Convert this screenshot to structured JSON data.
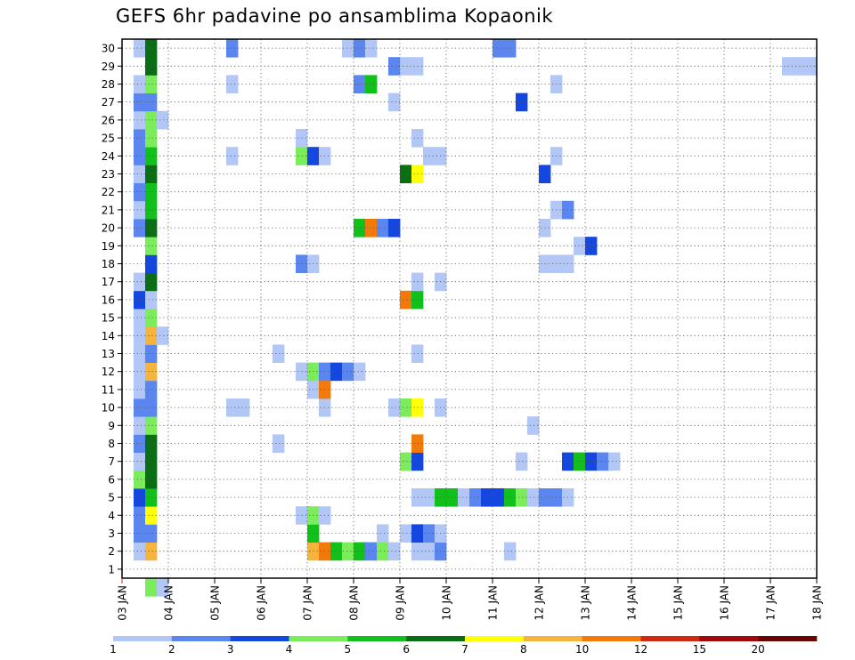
{
  "title": "GEFS 6hr padavine po ansamblima Kopaonik",
  "colors": {
    "c1": "#b3c7f7",
    "c2": "#5b86f0",
    "c3": "#1446e0",
    "c4": "#7ced5a",
    "c5": "#11c01a",
    "c6": "#0a6e14",
    "c7": "#ffff0a",
    "c8": "#f5b53c",
    "c9": "#f27a0a",
    "c10": "#d2280f",
    "c11": "#a00a0a",
    "c12": "#6a0505"
  },
  "chart_data": {
    "type": "heatmap",
    "title": "GEFS 6hr padavine po ansamblima Kopaonik",
    "x_tick_labels": [
      "03 JAN",
      "04 JAN",
      "05 JAN",
      "06 JAN",
      "07 JAN",
      "08 JAN",
      "09 JAN",
      "10 JAN",
      "11 JAN",
      "12 JAN",
      "13 JAN",
      "14 JAN",
      "15 JAN",
      "16 JAN",
      "17 JAN",
      "18 JAN"
    ],
    "y_tick_labels": [
      "1",
      "2",
      "3",
      "4",
      "5",
      "6",
      "7",
      "8",
      "9",
      "10",
      "11",
      "12",
      "13",
      "14",
      "15",
      "16",
      "17",
      "18",
      "19",
      "20",
      "21",
      "22",
      "23",
      "24",
      "25",
      "26",
      "27",
      "28",
      "29",
      "30"
    ],
    "xlim": [
      0,
      60
    ],
    "ylim": [
      0,
      30
    ],
    "grid": true,
    "colorbar_labels": [
      "1",
      "2",
      "3",
      "4",
      "5",
      "6",
      "7",
      "8",
      "10",
      "12",
      "15",
      "20"
    ],
    "colorbar_colors": [
      "c1",
      "c2",
      "c3",
      "c4",
      "c5",
      "c6",
      "c7",
      "c8",
      "c9",
      "c10",
      "c11",
      "c12"
    ],
    "cells": [
      [
        1,
        1,
        "c1"
      ],
      [
        2,
        1,
        "c8"
      ],
      [
        16,
        1,
        "c8"
      ],
      [
        17,
        1,
        "c9"
      ],
      [
        18,
        1,
        "c5"
      ],
      [
        19,
        1,
        "c4"
      ],
      [
        20,
        1,
        "c5"
      ],
      [
        21,
        1,
        "c2"
      ],
      [
        22,
        1,
        "c4"
      ],
      [
        23,
        1,
        "c1"
      ],
      [
        25,
        1,
        "c1"
      ],
      [
        26,
        1,
        "c1"
      ],
      [
        27,
        1,
        "c2"
      ],
      [
        33,
        1,
        "c1"
      ],
      [
        1,
        2,
        "c2"
      ],
      [
        2,
        2,
        "c2"
      ],
      [
        16,
        2,
        "c5"
      ],
      [
        22,
        2,
        "c1"
      ],
      [
        24,
        2,
        "c1"
      ],
      [
        25,
        2,
        "c3"
      ],
      [
        26,
        2,
        "c2"
      ],
      [
        27,
        2,
        "c1"
      ],
      [
        1,
        3,
        "c2"
      ],
      [
        2,
        3,
        "c7"
      ],
      [
        15,
        3,
        "c1"
      ],
      [
        16,
        3,
        "c4"
      ],
      [
        17,
        3,
        "c1"
      ],
      [
        1,
        4,
        "c3"
      ],
      [
        2,
        4,
        "c5"
      ],
      [
        25,
        4,
        "c1"
      ],
      [
        26,
        4,
        "c1"
      ],
      [
        27,
        4,
        "c5"
      ],
      [
        28,
        4,
        "c5"
      ],
      [
        29,
        4,
        "c1"
      ],
      [
        30,
        4,
        "c2"
      ],
      [
        31,
        4,
        "c3"
      ],
      [
        32,
        4,
        "c3"
      ],
      [
        33,
        4,
        "c5"
      ],
      [
        34,
        4,
        "c4"
      ],
      [
        35,
        4,
        "c1"
      ],
      [
        36,
        4,
        "c2"
      ],
      [
        37,
        4,
        "c2"
      ],
      [
        38,
        4,
        "c1"
      ],
      [
        1,
        5,
        "c4"
      ],
      [
        2,
        5,
        "c6"
      ],
      [
        1,
        6,
        "c1"
      ],
      [
        2,
        6,
        "c6"
      ],
      [
        24,
        6,
        "c4"
      ],
      [
        25,
        6,
        "c3"
      ],
      [
        34,
        6,
        "c1"
      ],
      [
        38,
        6,
        "c3"
      ],
      [
        39,
        6,
        "c5"
      ],
      [
        40,
        6,
        "c3"
      ],
      [
        41,
        6,
        "c2"
      ],
      [
        42,
        6,
        "c1"
      ],
      [
        1,
        7,
        "c2"
      ],
      [
        2,
        7,
        "c6"
      ],
      [
        13,
        7,
        "c1"
      ],
      [
        25,
        7,
        "c9"
      ],
      [
        1,
        8,
        "c1"
      ],
      [
        2,
        8,
        "c4"
      ],
      [
        35,
        8,
        "c1"
      ],
      [
        1,
        9,
        "c2"
      ],
      [
        2,
        9,
        "c2"
      ],
      [
        9,
        9,
        "c1"
      ],
      [
        10,
        9,
        "c1"
      ],
      [
        17,
        9,
        "c1"
      ],
      [
        23,
        9,
        "c1"
      ],
      [
        24,
        9,
        "c4"
      ],
      [
        25,
        9,
        "c7"
      ],
      [
        27,
        9,
        "c1"
      ],
      [
        1,
        10,
        "c1"
      ],
      [
        2,
        10,
        "c2"
      ],
      [
        16,
        10,
        "c1"
      ],
      [
        17,
        10,
        "c9"
      ],
      [
        1,
        11,
        "c1"
      ],
      [
        2,
        11,
        "c8"
      ],
      [
        15,
        11,
        "c1"
      ],
      [
        16,
        11,
        "c4"
      ],
      [
        17,
        11,
        "c2"
      ],
      [
        18,
        11,
        "c3"
      ],
      [
        19,
        11,
        "c2"
      ],
      [
        20,
        11,
        "c1"
      ],
      [
        1,
        12,
        "c1"
      ],
      [
        2,
        12,
        "c2"
      ],
      [
        13,
        12,
        "c1"
      ],
      [
        25,
        12,
        "c1"
      ],
      [
        1,
        13,
        "c1"
      ],
      [
        2,
        13,
        "c8"
      ],
      [
        3,
        13,
        "c1"
      ],
      [
        1,
        14,
        "c1"
      ],
      [
        2,
        14,
        "c4"
      ],
      [
        1,
        15,
        "c3"
      ],
      [
        2,
        15,
        "c1"
      ],
      [
        24,
        15,
        "c9"
      ],
      [
        25,
        15,
        "c5"
      ],
      [
        1,
        16,
        "c1"
      ],
      [
        2,
        16,
        "c6"
      ],
      [
        25,
        16,
        "c1"
      ],
      [
        27,
        16,
        "c1"
      ],
      [
        2,
        17,
        "c3"
      ],
      [
        15,
        17,
        "c2"
      ],
      [
        16,
        17,
        "c1"
      ],
      [
        36,
        17,
        "c1"
      ],
      [
        37,
        17,
        "c1"
      ],
      [
        38,
        17,
        "c1"
      ],
      [
        2,
        18,
        "c4"
      ],
      [
        39,
        18,
        "c1"
      ],
      [
        40,
        18,
        "c3"
      ],
      [
        1,
        19,
        "c2"
      ],
      [
        2,
        19,
        "c6"
      ],
      [
        20,
        19,
        "c5"
      ],
      [
        21,
        19,
        "c9"
      ],
      [
        22,
        19,
        "c2"
      ],
      [
        23,
        19,
        "c3"
      ],
      [
        36,
        19,
        "c1"
      ],
      [
        1,
        20,
        "c1"
      ],
      [
        2,
        20,
        "c5"
      ],
      [
        37,
        20,
        "c1"
      ],
      [
        38,
        20,
        "c2"
      ],
      [
        1,
        21,
        "c2"
      ],
      [
        2,
        21,
        "c5"
      ],
      [
        1,
        22,
        "c1"
      ],
      [
        2,
        22,
        "c6"
      ],
      [
        24,
        22,
        "c6"
      ],
      [
        25,
        22,
        "c7"
      ],
      [
        36,
        22,
        "c3"
      ],
      [
        1,
        23,
        "c2"
      ],
      [
        2,
        23,
        "c5"
      ],
      [
        9,
        23,
        "c1"
      ],
      [
        15,
        23,
        "c4"
      ],
      [
        16,
        23,
        "c3"
      ],
      [
        17,
        23,
        "c1"
      ],
      [
        26,
        23,
        "c1"
      ],
      [
        27,
        23,
        "c1"
      ],
      [
        37,
        23,
        "c1"
      ],
      [
        1,
        24,
        "c2"
      ],
      [
        2,
        24,
        "c4"
      ],
      [
        15,
        24,
        "c1"
      ],
      [
        25,
        24,
        "c1"
      ],
      [
        1,
        25,
        "c1"
      ],
      [
        2,
        25,
        "c4"
      ],
      [
        3,
        25,
        "c1"
      ],
      [
        1,
        26,
        "c2"
      ],
      [
        2,
        26,
        "c2"
      ],
      [
        23,
        26,
        "c1"
      ],
      [
        34,
        26,
        "c3"
      ],
      [
        1,
        27,
        "c1"
      ],
      [
        2,
        27,
        "c4"
      ],
      [
        9,
        27,
        "c1"
      ],
      [
        20,
        27,
        "c2"
      ],
      [
        21,
        27,
        "c5"
      ],
      [
        37,
        27,
        "c1"
      ],
      [
        2,
        28,
        "c6"
      ],
      [
        23,
        28,
        "c2"
      ],
      [
        24,
        28,
        "c1"
      ],
      [
        25,
        28,
        "c1"
      ],
      [
        57,
        28,
        "c1"
      ],
      [
        58,
        28,
        "c1"
      ],
      [
        59,
        28,
        "c1"
      ],
      [
        1,
        29,
        "c1"
      ],
      [
        2,
        29,
        "c6"
      ],
      [
        9,
        29,
        "c2"
      ],
      [
        19,
        29,
        "c1"
      ],
      [
        20,
        29,
        "c2"
      ],
      [
        21,
        29,
        "c1"
      ],
      [
        32,
        29,
        "c2"
      ],
      [
        33,
        29,
        "c2"
      ],
      [
        2,
        -1,
        "c4"
      ],
      [
        3,
        -1,
        "c1"
      ]
    ]
  }
}
